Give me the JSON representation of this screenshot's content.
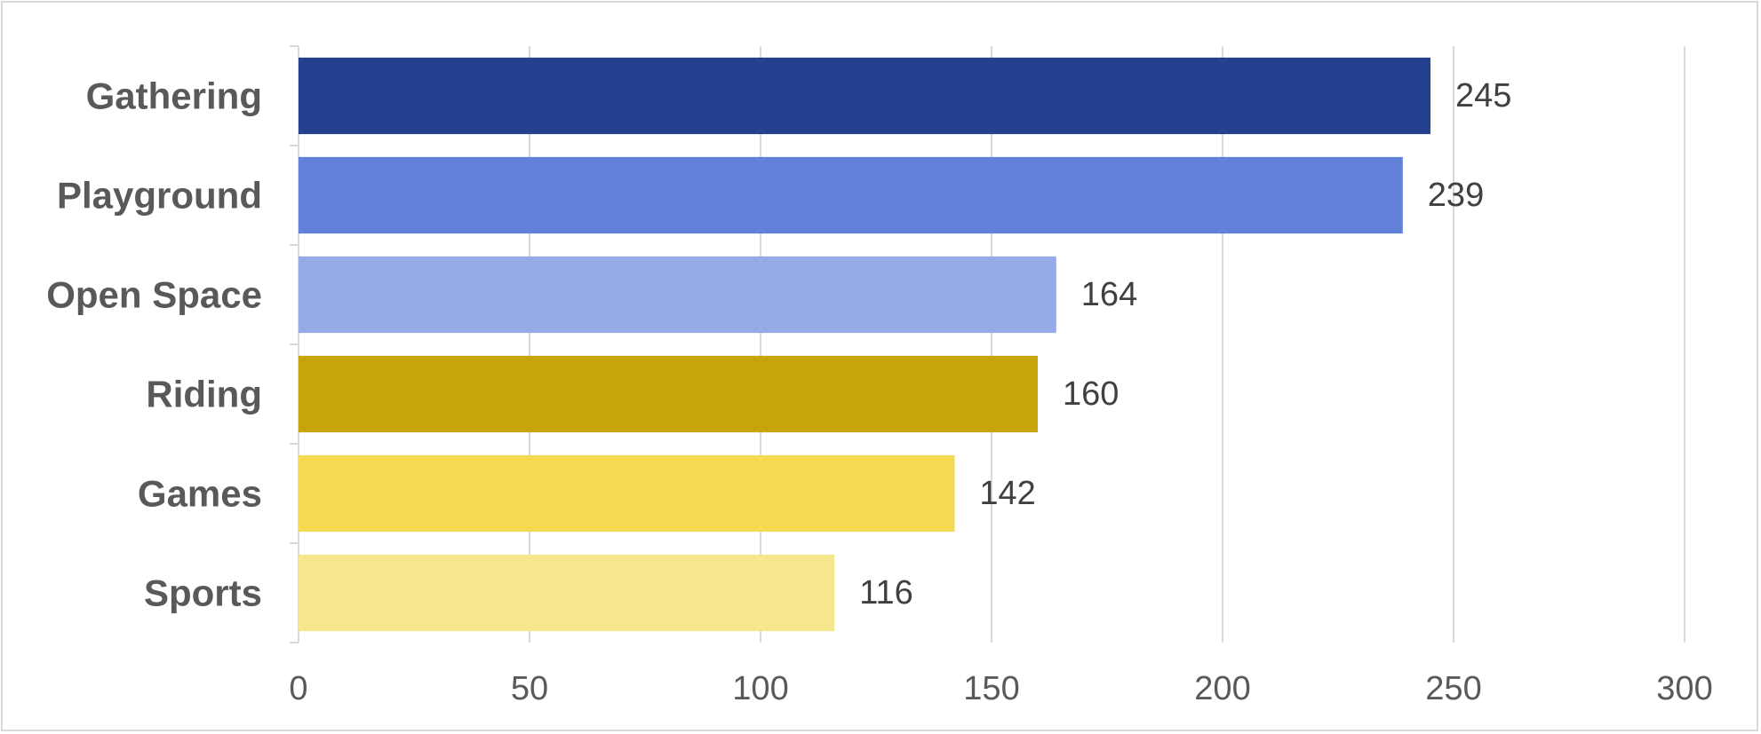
{
  "chart_data": {
    "type": "bar",
    "orientation": "horizontal",
    "categories": [
      "Gathering",
      "Playground",
      "Open Space",
      "Riding",
      "Games",
      "Sports"
    ],
    "values": [
      245,
      239,
      164,
      160,
      142,
      116
    ],
    "colors": [
      "#24408e",
      "#6281da",
      "#95aae6",
      "#c7a508",
      "#f4da53",
      "#f7e78c"
    ],
    "title": "",
    "xlabel": "",
    "ylabel": "",
    "xlim": [
      0,
      300
    ],
    "xticks": [
      0,
      50,
      100,
      150,
      200,
      250,
      300
    ],
    "grid": "vertical",
    "legend": "none",
    "data_labels": true
  }
}
